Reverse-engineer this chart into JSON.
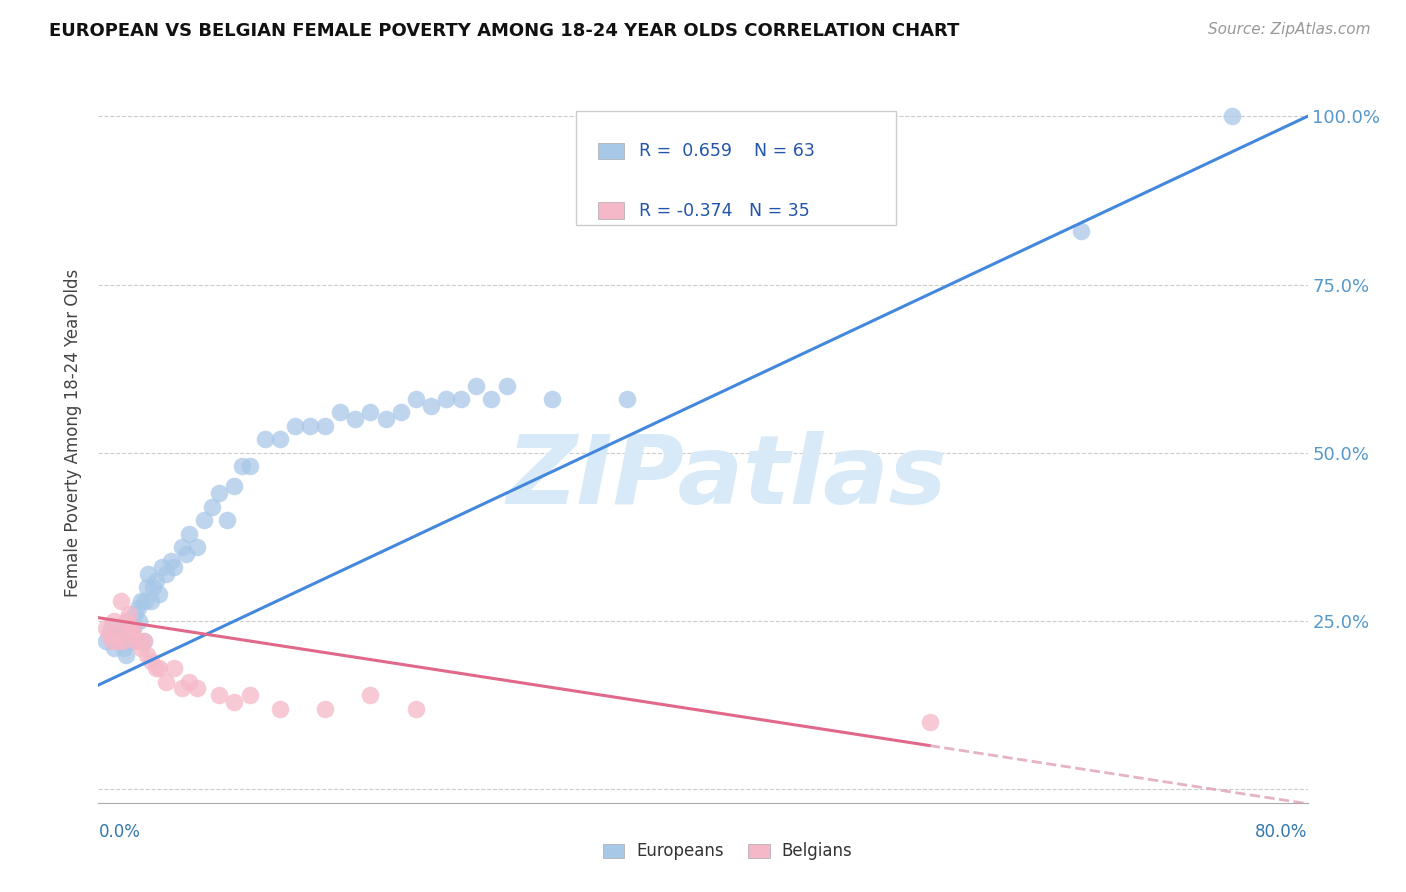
{
  "title": "EUROPEAN VS BELGIAN FEMALE POVERTY AMONG 18-24 YEAR OLDS CORRELATION CHART",
  "source": "Source: ZipAtlas.com",
  "ylabel": "Female Poverty Among 18-24 Year Olds",
  "xlim": [
    0.0,
    0.8
  ],
  "ylim": [
    -0.02,
    1.08
  ],
  "yticks": [
    0.0,
    0.25,
    0.5,
    0.75,
    1.0
  ],
  "ytick_labels": [
    "",
    "25.0%",
    "50.0%",
    "75.0%",
    "100.0%"
  ],
  "xticks": [
    0.0,
    0.1,
    0.2,
    0.3,
    0.4,
    0.5,
    0.6,
    0.7,
    0.8
  ],
  "watermark": "ZIPatlas",
  "legend_R_blue": "0.659",
  "legend_N_blue": "63",
  "legend_R_pink": "-0.374",
  "legend_N_pink": "35",
  "blue_color": "#a8c8e8",
  "pink_color": "#f5b8c8",
  "line_blue": "#4488dd",
  "line_pink": "#e06888",
  "line_pink_dashed_color": "#e0a0b8",
  "europeans_x": [
    0.005,
    0.008,
    0.01,
    0.012,
    0.013,
    0.015,
    0.015,
    0.017,
    0.018,
    0.019,
    0.02,
    0.021,
    0.022,
    0.023,
    0.024,
    0.025,
    0.026,
    0.027,
    0.028,
    0.03,
    0.031,
    0.032,
    0.033,
    0.035,
    0.036,
    0.038,
    0.04,
    0.042,
    0.045,
    0.048,
    0.05,
    0.055,
    0.058,
    0.06,
    0.065,
    0.07,
    0.075,
    0.08,
    0.085,
    0.09,
    0.095,
    0.1,
    0.11,
    0.12,
    0.13,
    0.14,
    0.15,
    0.16,
    0.17,
    0.18,
    0.19,
    0.2,
    0.21,
    0.22,
    0.23,
    0.24,
    0.25,
    0.26,
    0.27,
    0.3,
    0.35,
    0.65,
    0.75
  ],
  "europeans_y": [
    0.22,
    0.24,
    0.21,
    0.23,
    0.22,
    0.23,
    0.22,
    0.21,
    0.2,
    0.24,
    0.25,
    0.22,
    0.23,
    0.24,
    0.26,
    0.22,
    0.27,
    0.25,
    0.28,
    0.22,
    0.28,
    0.3,
    0.32,
    0.28,
    0.3,
    0.31,
    0.29,
    0.33,
    0.32,
    0.34,
    0.33,
    0.36,
    0.35,
    0.38,
    0.36,
    0.4,
    0.42,
    0.44,
    0.4,
    0.45,
    0.48,
    0.48,
    0.52,
    0.52,
    0.54,
    0.54,
    0.54,
    0.56,
    0.55,
    0.56,
    0.55,
    0.56,
    0.58,
    0.57,
    0.58,
    0.58,
    0.6,
    0.58,
    0.6,
    0.58,
    0.58,
    0.83,
    1.0
  ],
  "belgians_x": [
    0.005,
    0.007,
    0.009,
    0.01,
    0.012,
    0.013,
    0.015,
    0.016,
    0.018,
    0.019,
    0.02,
    0.021,
    0.022,
    0.023,
    0.025,
    0.027,
    0.028,
    0.03,
    0.032,
    0.035,
    0.038,
    0.04,
    0.045,
    0.05,
    0.055,
    0.06,
    0.065,
    0.08,
    0.09,
    0.1,
    0.12,
    0.15,
    0.18,
    0.21,
    0.55
  ],
  "belgians_y": [
    0.24,
    0.23,
    0.22,
    0.25,
    0.23,
    0.22,
    0.28,
    0.22,
    0.25,
    0.24,
    0.26,
    0.24,
    0.23,
    0.24,
    0.22,
    0.22,
    0.21,
    0.22,
    0.2,
    0.19,
    0.18,
    0.18,
    0.16,
    0.18,
    0.15,
    0.16,
    0.15,
    0.14,
    0.13,
    0.14,
    0.12,
    0.12,
    0.14,
    0.12,
    0.1
  ],
  "blue_line_x0": 0.0,
  "blue_line_y0": 0.155,
  "blue_line_x1": 0.8,
  "blue_line_y1": 1.0,
  "pink_line_x0": 0.0,
  "pink_line_y0": 0.255,
  "pink_line_x1": 0.55,
  "pink_line_y1": 0.065
}
